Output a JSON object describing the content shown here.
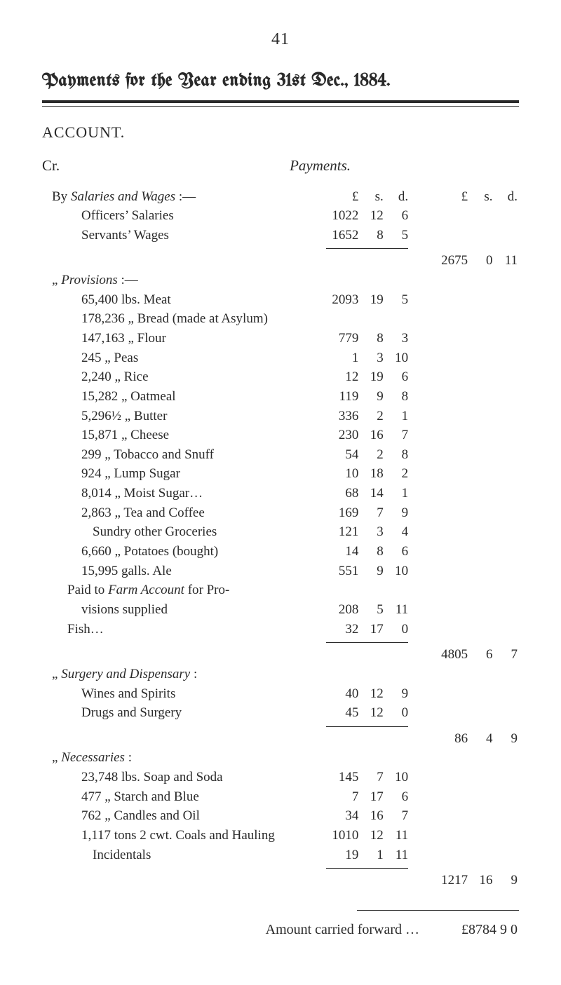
{
  "page_number": "41",
  "title_text": "Payments for the Year ending 31st Dec., 1884.",
  "account_label": "ACCOUNT.",
  "cr_label": "Cr.",
  "payments_label": "Payments.",
  "col_hdr_left": {
    "L": "£",
    "s": "s.",
    "d": "d."
  },
  "col_hdr_right": {
    "L": "£",
    "s": "s.",
    "d": "d."
  },
  "salaries": {
    "heading_prefix": "By ",
    "heading_italic": "Salaries and Wages",
    "heading_suffix": " :—",
    "rows": [
      {
        "label": "Officers’ Salaries",
        "L": "1022",
        "s": "12",
        "d": "6"
      },
      {
        "label": "Servants’ Wages",
        "L": "1652",
        "s": "8",
        "d": "5"
      }
    ],
    "total": {
      "L": "2675",
      "s": "0",
      "d": "11"
    }
  },
  "provisions": {
    "heading_prefix": "„ ",
    "heading_italic": "Provisions",
    "heading_suffix": " :—",
    "rows": [
      {
        "label": "65,400 lbs. Meat",
        "L": "2093",
        "s": "19",
        "d": "5"
      },
      {
        "label": "178,236  „  Bread (made at Asylum)",
        "L": "",
        "s": "",
        "d": ""
      },
      {
        "label": "147,163  „  Flour",
        "L": "779",
        "s": "8",
        "d": "3"
      },
      {
        "label": "245  „  Peas",
        "L": "1",
        "s": "3",
        "d": "10"
      },
      {
        "label": "2,240  „  Rice",
        "L": "12",
        "s": "19",
        "d": "6"
      },
      {
        "label": "15,282  „  Oatmeal",
        "L": "119",
        "s": "9",
        "d": "8"
      },
      {
        "label": "5,296½  „  Butter",
        "L": "336",
        "s": "2",
        "d": "1"
      },
      {
        "label": "15,871  „  Cheese",
        "L": "230",
        "s": "16",
        "d": "7"
      },
      {
        "label": "299  „  Tobacco and Snuff",
        "L": "54",
        "s": "2",
        "d": "8"
      },
      {
        "label": "924  „  Lump Sugar",
        "L": "10",
        "s": "18",
        "d": "2"
      },
      {
        "label": "8,014  „  Moist Sugar…",
        "L": "68",
        "s": "14",
        "d": "1"
      },
      {
        "label": "2,863  „  Tea and Coffee",
        "L": "169",
        "s": "7",
        "d": "9"
      },
      {
        "label": "Sundry other Groceries",
        "L": "121",
        "s": "3",
        "d": "4",
        "extra_indent": true
      },
      {
        "label": "6,660  „  Potatoes (bought)",
        "L": "14",
        "s": "8",
        "d": "6"
      },
      {
        "label": "15,995 galls. Ale",
        "L": "551",
        "s": "9",
        "d": "10"
      }
    ],
    "paid_line1": "Paid to  Farm  Account  for  Pro-",
    "paid_italic": "Farm Account",
    "paid_line2_label": "visions supplied",
    "paid_line2": {
      "L": "208",
      "s": "5",
      "d": "11"
    },
    "fish_label": "Fish…",
    "fish": {
      "L": "32",
      "s": "17",
      "d": "0"
    },
    "total": {
      "L": "4805",
      "s": "6",
      "d": "7"
    }
  },
  "surgery": {
    "heading_prefix": "„ ",
    "heading_italic": "Surgery and Dispensary",
    "heading_suffix": " :",
    "rows": [
      {
        "label": "Wines and Spirits",
        "L": "40",
        "s": "12",
        "d": "9"
      },
      {
        "label": "Drugs and Surgery",
        "L": "45",
        "s": "12",
        "d": "0"
      }
    ],
    "total": {
      "L": "86",
      "s": "4",
      "d": "9"
    }
  },
  "necessaries": {
    "heading_prefix": "„ ",
    "heading_italic": "Necessaries",
    "heading_suffix": " :",
    "rows": [
      {
        "label": "23,748 lbs. Soap and Soda",
        "L": "145",
        "s": "7",
        "d": "10"
      },
      {
        "label": "477  „  Starch and Blue",
        "L": "7",
        "s": "17",
        "d": "6"
      },
      {
        "label": "762  „  Candles and Oil",
        "L": "34",
        "s": "16",
        "d": "7"
      },
      {
        "label": "1,117 tons 2 cwt. Coals and Hauling",
        "L": "1010",
        "s": "12",
        "d": "11"
      },
      {
        "label": "Incidentals",
        "L": "19",
        "s": "1",
        "d": "11",
        "extra_indent": true
      }
    ],
    "total": {
      "L": "1217",
      "s": "16",
      "d": "9"
    }
  },
  "footer": {
    "label": "Amount carried forward …",
    "amount": "£8784   9   0"
  },
  "colors": {
    "text": "#2a2a2a",
    "background": "#ffffff",
    "rule": "#2a2a2a"
  },
  "fontsizes": {
    "body": 20,
    "title": 26,
    "page_number": 24,
    "table": 19
  }
}
